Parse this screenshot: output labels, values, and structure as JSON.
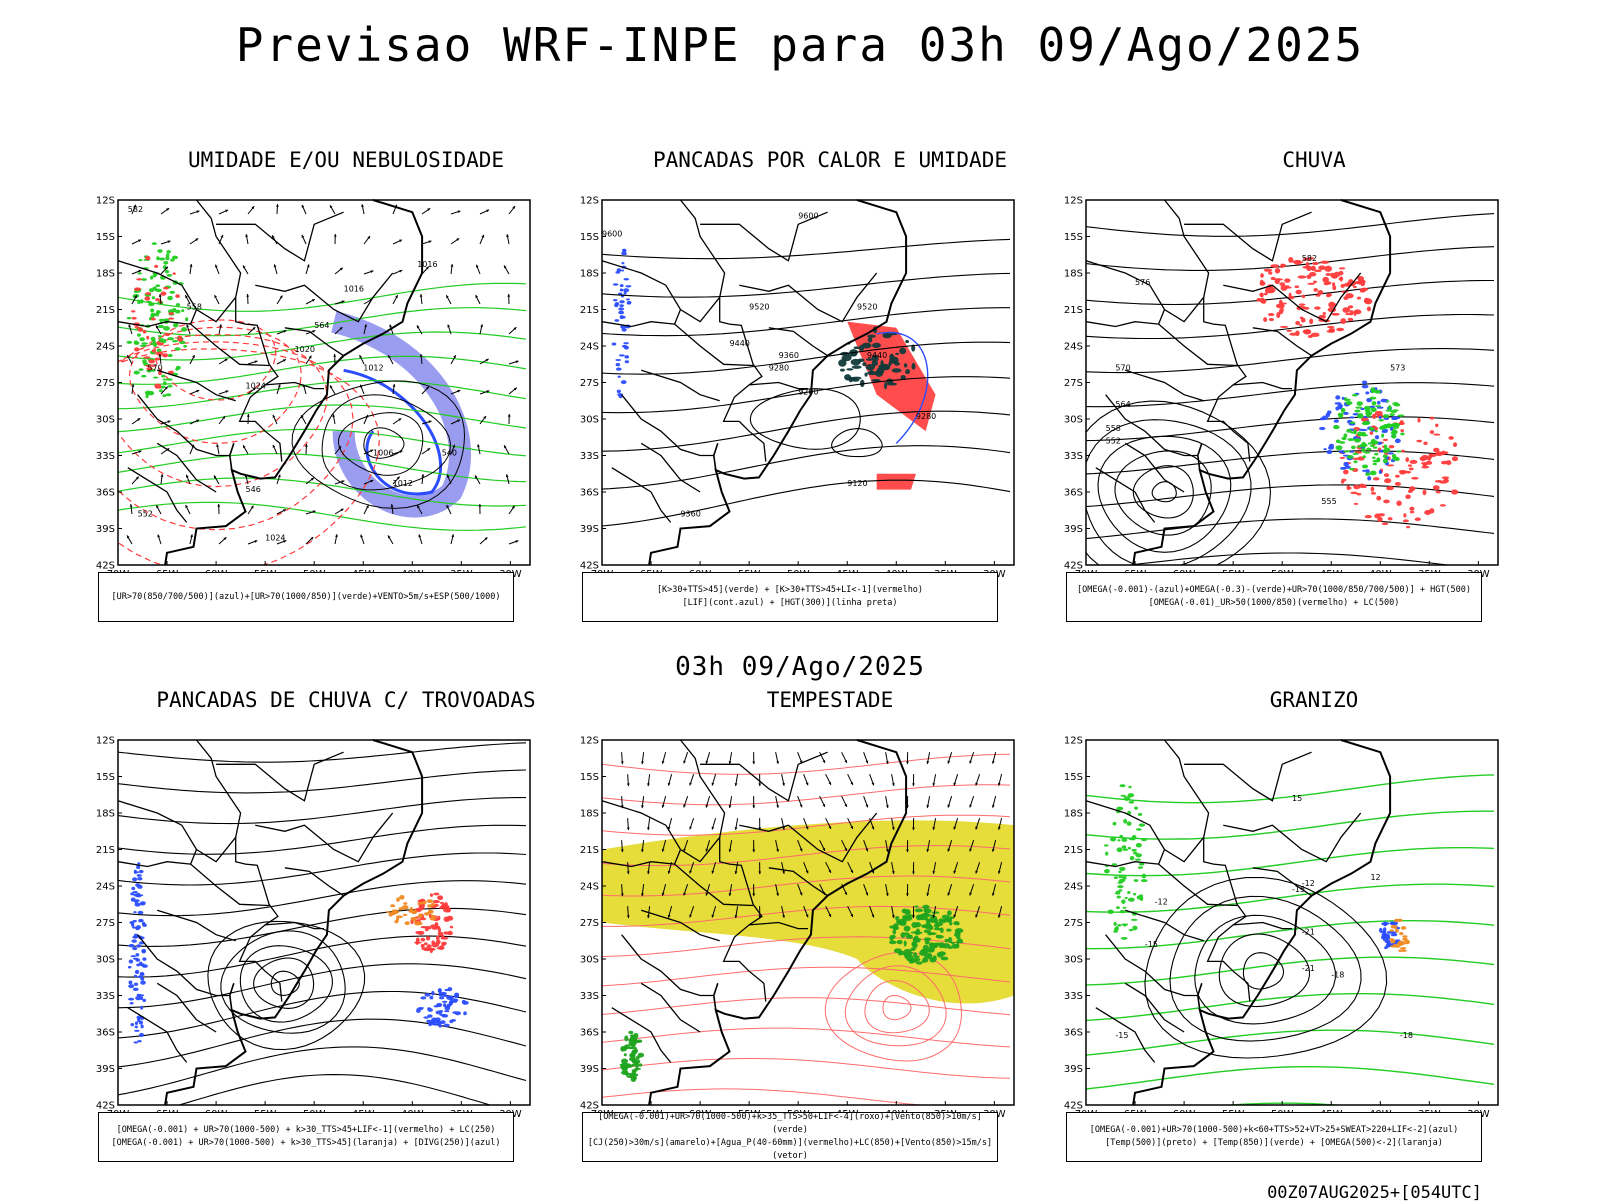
{
  "title": "Previsao WRF-INPE  para 03h 09/Ago/2025",
  "subtitle": "03h 09/Ago/2025",
  "footer": "00Z07AUG2025+[054UTC]",
  "axes": {
    "lat_labels": [
      "12S",
      "15S",
      "18S",
      "21S",
      "24S",
      "27S",
      "30S",
      "33S",
      "36S",
      "39S",
      "42S"
    ],
    "lon_labels": [
      "70W",
      "65W",
      "60W",
      "55W",
      "50W",
      "45W",
      "40W",
      "35W",
      "30W"
    ]
  },
  "panels": [
    {
      "title": "UMIDADE E/OU NEBULOSIDADE",
      "legend": [
        "[UR>70(850/700/500)](azul)+[UR>70(1000/850)](verde)+VENTO>5m/s+ESP(500/1000)"
      ],
      "contour_labels": [
        "1016",
        "1012",
        "1020",
        "1024",
        "1006",
        "1012",
        "1016",
        "1024",
        "582",
        "564",
        "570",
        "552",
        "546",
        "540",
        "558"
      ]
    },
    {
      "title": "PANCADAS POR CALOR E UMIDADE",
      "legend": [
        "[K>30+TTS>45](verde) + [K>30+TTS>45+LI<-1](vermelho)",
        "[LIF](cont.azul) + [HGT(300)](linha preta)"
      ],
      "contour_labels": [
        "9600",
        "9520",
        "9440",
        "9360",
        "9280",
        "9200",
        "9120",
        "9360",
        "9280",
        "9440",
        "9520",
        "9600"
      ]
    },
    {
      "title": "CHUVA",
      "legend": [
        "[OMEGA(-0.001)-(azul)+OMEGA(-0.3)-(verde)+UR>70(1000/850/700/500)] + HGT(500)",
        "[OMEGA(-0.01)_UR>50(1000/850)(vermelho) + LC(500)"
      ],
      "contour_labels": [
        "582",
        "576",
        "570",
        "564",
        "558",
        "552",
        "573",
        "555"
      ]
    },
    {
      "title": "PANCADAS DE CHUVA C/ TROVOADAS",
      "legend": [
        "[OMEGA(-0.001) + UR>70(1000-500) + k>30_TTS>45+LIF<-1](vermelho) + LC(250)",
        "[OMEGA(-0.001) + UR>70(1000-500) + k>30_TTS>45](laranja) + [DIVG(250)](azul)"
      ],
      "contour_labels": []
    },
    {
      "title": "TEMPESTADE",
      "legend": [
        "[OMEGA(-0.001)+UR>70(1000-500)+k>35_TTS>50+LIF<-4](roxo)+[Vento(850)>10m/s](verde)",
        "[CJ(250)>30m/s](amarelo)+[Agua_P(40-60mm)](vermelho)+LC(850)+[Vento(850)>15m/s](vetor)"
      ],
      "contour_labels": []
    },
    {
      "title": "GRANIZO",
      "legend": [
        "[OMEGA(-0.001)+UR>70(1000-500)+k<60+TTS>52+VT>25+SWEAT>220+LIF<-2](azul)",
        "[Temp(500)](preto) + [Temp(850)](verde) + [OMEGA(500)<-2](laranja)"
      ],
      "contour_labels": [
        "-15",
        "-12",
        "-21",
        "-18",
        "-15",
        "-12",
        "-21",
        "-18",
        "-15",
        "15",
        "12"
      ]
    }
  ],
  "colors": {
    "green": "#22cc22",
    "blue": "#2b4dff",
    "red": "#ff3b3b",
    "orange": "#f08a24",
    "yellow": "#e6dc3a",
    "black": "#000000",
    "lavender": "#9a9cf0"
  }
}
